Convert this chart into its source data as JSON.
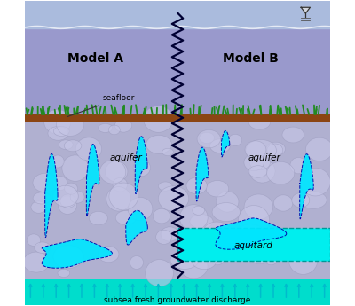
{
  "ocean_color": "#9999cc",
  "sediment_bg": "#b0b0d0",
  "seafloor_bar_color": "#8B4513",
  "aquifer_color": "#00e5ff",
  "aquifer_border": "#0000aa",
  "aquitard_color": "#00eeee",
  "aquitard_border": "#009999",
  "bottom_color": "#00ddcc",
  "arrow_color": "#00bbcc",
  "zigzag_color": "#000033",
  "grass_color": "#228B22",
  "text_color": "#000000",
  "label_seafloor": "seafloor",
  "label_aquifer_L": "aquifer",
  "label_aquifer_R": "aquifer",
  "label_aquitard": "aquitard",
  "label_modelA": "Model A",
  "label_modelB": "Model B",
  "label_bottom": "subsea fresh groundwater discharge",
  "fig_width": 4.0,
  "fig_height": 3.45,
  "dpi": 100
}
